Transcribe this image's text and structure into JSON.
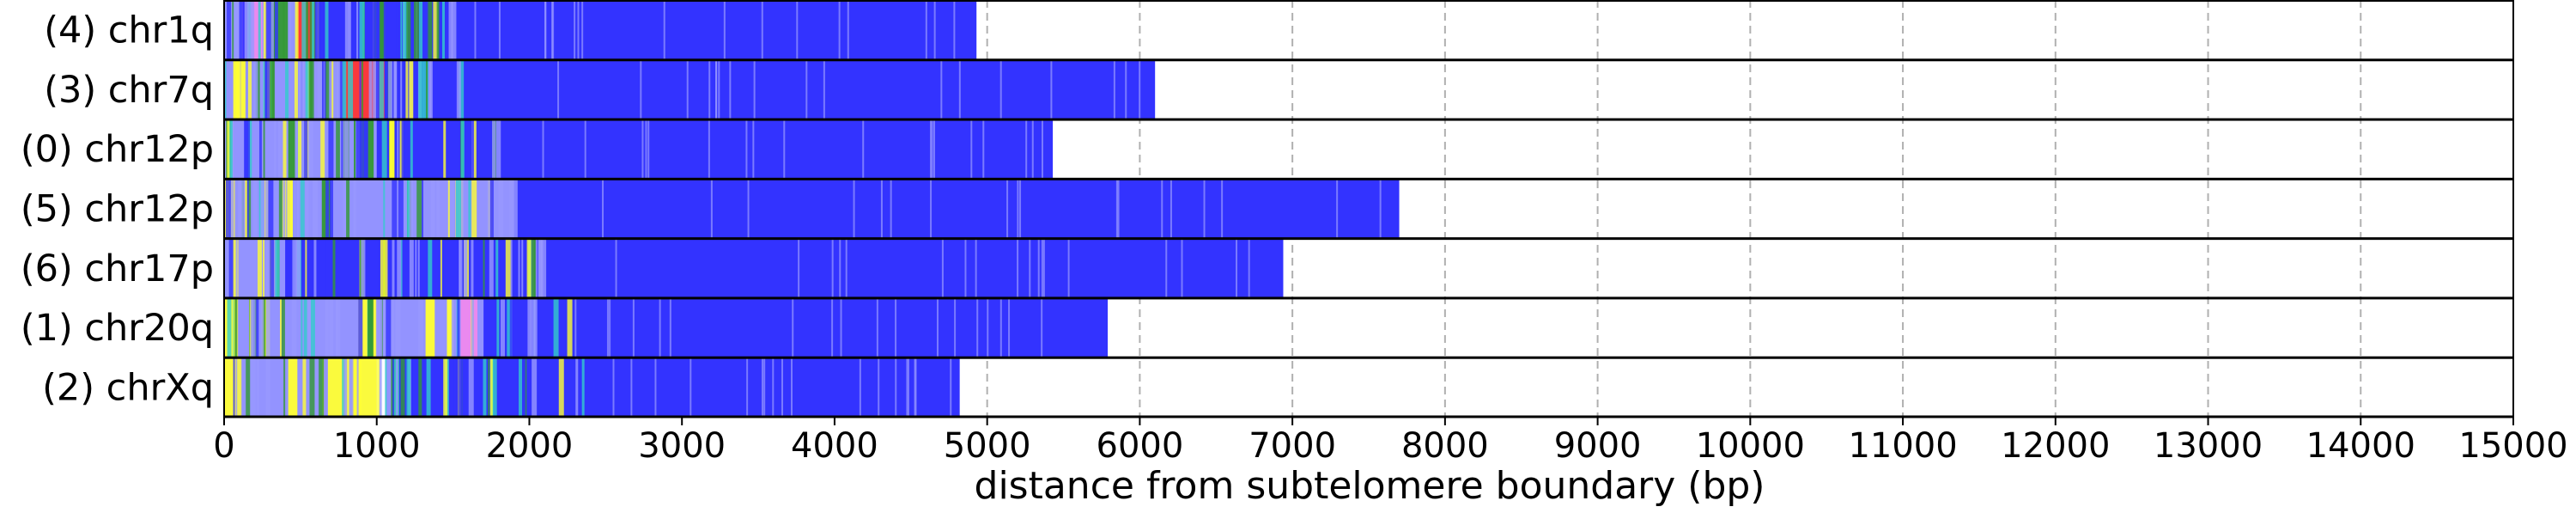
{
  "chart_data": {
    "type": "bar",
    "orientation": "horizontal",
    "rows": [
      {
        "label": "(4) chr1q",
        "length": 4930
      },
      {
        "label": "(3) chr7q",
        "length": 6100
      },
      {
        "label": "(0) chr12p",
        "length": 5430
      },
      {
        "label": "(5) chr12p",
        "length": 7700
      },
      {
        "label": "(6) chr17p",
        "length": 6940
      },
      {
        "label": "(1) chr20q",
        "length": 5790
      },
      {
        "label": "(2) chrXq",
        "length": 4820
      }
    ],
    "xlabel": "distance from subtelomere boundary (bp)",
    "xlim": [
      0,
      15000
    ],
    "xticks": [
      0,
      1000,
      2000,
      3000,
      4000,
      5000,
      6000,
      7000,
      8000,
      9000,
      10000,
      11000,
      12000,
      13000,
      14000,
      15000
    ],
    "grid": "vertical dashed",
    "colors": {
      "main": "#3333ff",
      "light_variant": "#9999ff",
      "yellow": "#ffff33",
      "red": "#ff3333",
      "green": "#339933",
      "pink": "#ee88ee",
      "cyan": "#33cccc",
      "grid": "#b0b0b0",
      "frame": "#000000"
    },
    "segments": [
      [
        {
          "start": 0,
          "end": 620,
          "color": "#9999ff"
        },
        {
          "start": 120,
          "end": 260,
          "color": "#ee88ee"
        },
        {
          "start": 300,
          "end": 420,
          "color": "#339933"
        },
        {
          "start": 480,
          "end": 600,
          "color": "#ff3333"
        }
      ],
      [
        {
          "start": 0,
          "end": 1050,
          "color": "#9999ff"
        },
        {
          "start": 60,
          "end": 140,
          "color": "#ffff33"
        },
        {
          "start": 260,
          "end": 320,
          "color": "#ffff33"
        },
        {
          "start": 780,
          "end": 1050,
          "color": "#ff3333"
        }
      ],
      [
        {
          "start": 0,
          "end": 60,
          "color": "#ffff33"
        },
        {
          "start": 0,
          "end": 1000,
          "color": "#9999ff"
        },
        {
          "start": 420,
          "end": 480,
          "color": "#339933"
        },
        {
          "start": 850,
          "end": 980,
          "color": "#339933"
        }
      ],
      [
        {
          "start": 0,
          "end": 1900,
          "color": "#9999ff"
        },
        {
          "start": 0,
          "end": 70,
          "color": "#ffff33"
        },
        {
          "start": 380,
          "end": 450,
          "color": "#ffff33"
        },
        {
          "start": 640,
          "end": 700,
          "color": "#339933"
        }
      ],
      [
        {
          "start": 0,
          "end": 400,
          "color": "#9999ff"
        },
        {
          "start": 300,
          "end": 330,
          "color": "#ffff33"
        }
      ],
      [
        {
          "start": 0,
          "end": 1700,
          "color": "#9999ff"
        },
        {
          "start": 0,
          "end": 80,
          "color": "#ffff33"
        },
        {
          "start": 250,
          "end": 300,
          "color": "#ffff33"
        },
        {
          "start": 880,
          "end": 1000,
          "color": "#ffff33"
        },
        {
          "start": 1320,
          "end": 1380,
          "color": "#ffff33"
        },
        {
          "start": 1460,
          "end": 1500,
          "color": "#ffff33"
        },
        {
          "start": 1550,
          "end": 1660,
          "color": "#ee88ee"
        }
      ],
      [
        {
          "start": 0,
          "end": 1100,
          "color": "#9999ff"
        },
        {
          "start": 0,
          "end": 100,
          "color": "#ffff33"
        },
        {
          "start": 420,
          "end": 480,
          "color": "#ffff33"
        },
        {
          "start": 680,
          "end": 1000,
          "color": "#ffff33"
        },
        {
          "start": 1000,
          "end": 1060,
          "color": "#ffffff"
        }
      ]
    ]
  }
}
